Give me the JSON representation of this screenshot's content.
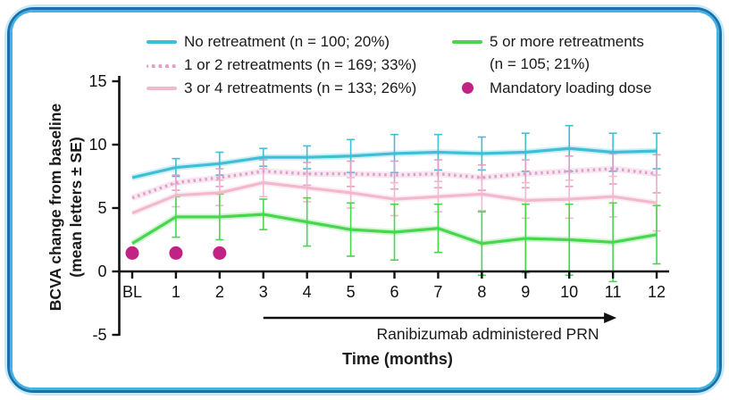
{
  "frame": {
    "outer_border": "#1d6fa9",
    "mid_border": "#45b3e2",
    "glow_border": "#c6eaf7",
    "background": "#ffffff"
  },
  "legend": {
    "left": [
      {
        "label": "No retreatment (n = 100; 20%)"
      },
      {
        "label": "1 or 2 retreatments (n = 169; 33%)"
      },
      {
        "label": "3 or 4 retreatments (n = 133; 26%)"
      }
    ],
    "right_label_line1": "5 or more retreatments",
    "right_label_line2": "(n = 105; 21%)",
    "loading_dose_label": "Mandatory loading dose"
  },
  "chart_data": {
    "type": "line",
    "xlabel": "Time (months)",
    "ylabel_line1": "BCVA change from baseline",
    "ylabel_line2": "(mean letters ± SE)",
    "x_labels": [
      "BL",
      "1",
      "2",
      "3",
      "4",
      "5",
      "6",
      "7",
      "8",
      "9",
      "10",
      "11",
      "12"
    ],
    "ylim": [
      -5,
      15
    ],
    "y_ticks": [
      15,
      10,
      5,
      0,
      -5
    ],
    "grid": false,
    "legend_position": "top",
    "series": [
      {
        "name": "No retreatment",
        "n": 100,
        "percent": "20%",
        "color": "#3ebfd5",
        "style": "solid",
        "values": [
          7.4,
          8.2,
          8.5,
          9.0,
          9.0,
          9.1,
          9.3,
          9.4,
          9.3,
          9.4,
          9.7,
          9.4,
          9.5
        ],
        "se": [
          0,
          0.7,
          0.9,
          0.7,
          0.9,
          1.3,
          1.5,
          1.4,
          1.3,
          1.5,
          1.8,
          1.5,
          1.4
        ]
      },
      {
        "name": "1 or 2 retreatments",
        "n": 169,
        "percent": "33%",
        "color": "#dfa0c7",
        "style": "dotted",
        "values": [
          5.8,
          7.0,
          7.4,
          7.9,
          7.7,
          7.7,
          7.6,
          7.7,
          7.4,
          7.7,
          7.9,
          8.1,
          7.7
        ],
        "se": [
          0,
          0.6,
          0.7,
          0.9,
          0.9,
          1.0,
          1.1,
          1.1,
          1.0,
          1.1,
          1.2,
          1.2,
          1.5
        ]
      },
      {
        "name": "3 or 4 retreatments",
        "n": 133,
        "percent": "26%",
        "color": "#f2b8ce",
        "style": "solid",
        "values": [
          4.6,
          6.0,
          6.2,
          7.0,
          6.6,
          6.2,
          5.7,
          5.9,
          6.1,
          5.6,
          5.7,
          5.9,
          5.4
        ],
        "se": [
          0,
          0.9,
          1.0,
          1.1,
          1.1,
          1.2,
          1.3,
          1.2,
          1.3,
          1.4,
          1.5,
          1.6,
          2.2
        ]
      },
      {
        "name": "5 or more retreatments",
        "n": 105,
        "percent": "21%",
        "color": "#47d64d",
        "style": "solid",
        "values": [
          2.2,
          4.3,
          4.3,
          4.5,
          3.9,
          3.3,
          3.1,
          3.4,
          2.2,
          2.6,
          2.5,
          2.3,
          2.9
        ],
        "se": [
          0,
          1.6,
          1.8,
          1.2,
          1.9,
          2.1,
          2.2,
          1.9,
          2.5,
          2.7,
          2.8,
          3.1,
          2.3
        ]
      }
    ],
    "markers": {
      "name": "Mandatory loading dose",
      "color": "#c02383",
      "x_indices": [
        0,
        1,
        2
      ],
      "value": 1.45
    },
    "annotation": {
      "text": "Ranibizumab administered PRN",
      "arrow_from_index": 3,
      "arrow_to_index": 11
    }
  }
}
